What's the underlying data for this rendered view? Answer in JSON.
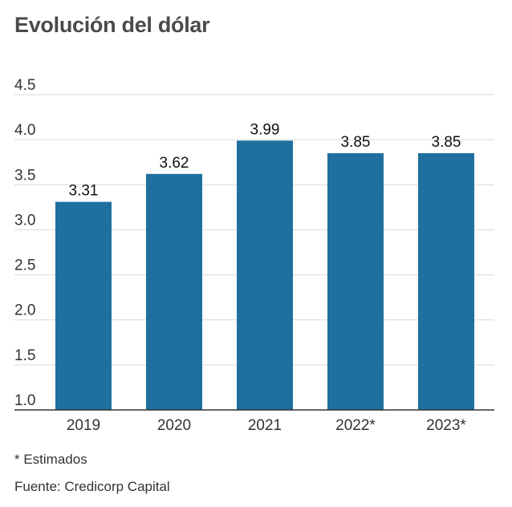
{
  "title": "Evolución del dólar",
  "notes": {
    "estimate": "* Estimados",
    "source": "Fuente: Credicorp Capital"
  },
  "chart_data": {
    "type": "bar",
    "title": "Evolución del dólar",
    "xlabel": "",
    "ylabel": "",
    "categories": [
      "2019",
      "2020",
      "2021",
      "2022*",
      "2023*"
    ],
    "values": [
      3.31,
      3.62,
      3.99,
      3.85,
      3.85
    ],
    "value_labels": [
      "3.31",
      "3.62",
      "3.99",
      "3.85",
      "3.85"
    ],
    "yticks": [
      "1.0",
      "1.5",
      "2.0",
      "2.5",
      "3.0",
      "3.5",
      "4.0",
      "4.5"
    ],
    "ylim": [
      1.0,
      4.5
    ],
    "grid": true,
    "bar_color": "#1f6f9f"
  }
}
